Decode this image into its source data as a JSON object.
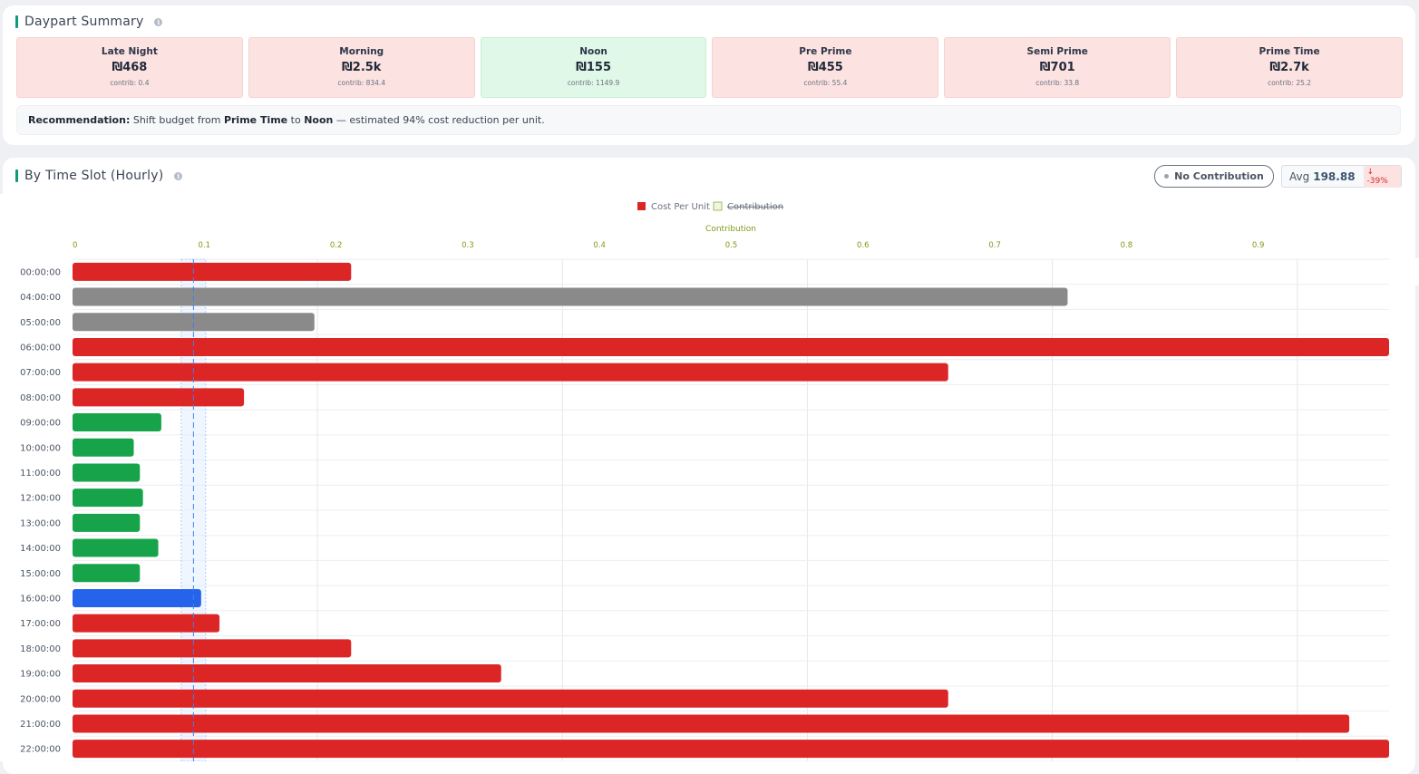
{
  "summary": {
    "title": "Daypart Summary",
    "tiles": [
      {
        "name": "Late Night",
        "value": "₪468",
        "contrib": "contrib: 0.4",
        "status": "bad"
      },
      {
        "name": "Morning",
        "value": "₪2.5k",
        "contrib": "contrib: 834.4",
        "status": "bad"
      },
      {
        "name": "Noon",
        "value": "₪155",
        "contrib": "contrib: 1149.9",
        "status": "good"
      },
      {
        "name": "Pre Prime",
        "value": "₪455",
        "contrib": "contrib: 55.4",
        "status": "bad"
      },
      {
        "name": "Semi Prime",
        "value": "₪701",
        "contrib": "contrib: 33.8",
        "status": "bad"
      },
      {
        "name": "Prime Time",
        "value": "₪2.7k",
        "contrib": "contrib: 25.2",
        "status": "bad"
      }
    ],
    "recommendation": {
      "label": "Recommendation:",
      "text1": " Shift budget from ",
      "from": "Prime Time",
      "text2": " to ",
      "to": "Noon",
      "text3": " — estimated 94% cost reduction per unit."
    }
  },
  "slots": {
    "title": "By Time Slot (Hourly)",
    "no_contribution_button": "No Contribution",
    "avg_label": "Avg",
    "avg_value": "198.88",
    "avg_change": "↓ -39%"
  },
  "colors": {
    "high": "#dc2626",
    "low": "#16a34a",
    "none": "#8a8a8a",
    "highlight": "#2563eb",
    "contribution_axis": "#7c9a16"
  },
  "chart_data": {
    "type": "bar",
    "orientation": "horizontal",
    "legend": [
      "Cost Per Unit",
      "Contribution"
    ],
    "legend_hidden": [
      "Contribution"
    ],
    "legend_position": "top-center",
    "top_axis_label": "Contribution",
    "top_axis_ticks": [
      "0",
      "0.1",
      "0.2",
      "0.3",
      "0.4",
      "0.5",
      "0.6",
      "0.7",
      "0.8",
      "0.9"
    ],
    "contribution_xlim": [
      0,
      1
    ],
    "cost_xlim": [
      0,
      430
    ],
    "average_line": 39.5,
    "average_band": [
      35.5,
      43.5
    ],
    "grid": true,
    "categories": [
      "00:00:00",
      "04:00:00",
      "05:00:00",
      "06:00:00",
      "07:00:00",
      "08:00:00",
      "09:00:00",
      "10:00:00",
      "11:00:00",
      "12:00:00",
      "13:00:00",
      "14:00:00",
      "15:00:00",
      "16:00:00",
      "17:00:00",
      "18:00:00",
      "19:00:00",
      "20:00:00",
      "21:00:00",
      "22:00:00"
    ],
    "values": [
      91,
      325,
      79,
      560,
      286,
      56,
      29,
      20,
      22,
      23,
      22,
      28,
      22,
      42,
      48,
      91,
      140,
      286,
      417,
      470
    ],
    "status": [
      "high",
      "none",
      "none",
      "high",
      "high",
      "high",
      "low",
      "low",
      "low",
      "low",
      "low",
      "low",
      "low",
      "highlight",
      "high",
      "high",
      "high",
      "high",
      "high",
      "high"
    ]
  }
}
